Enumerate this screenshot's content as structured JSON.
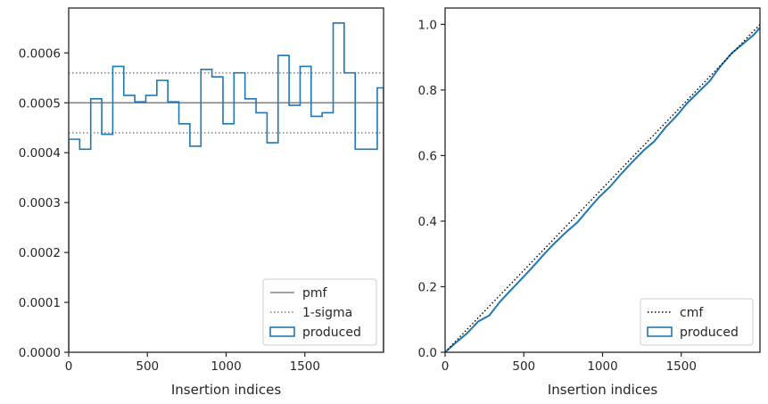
{
  "chart_data": [
    {
      "type": "histogram",
      "xlabel": "Insertion indices",
      "ylabel": "",
      "xlim": [
        0,
        2000
      ],
      "ylim": [
        0,
        0.00069
      ],
      "xticks": [
        0,
        500,
        1000,
        1500
      ],
      "xtick_labels": [
        "0",
        "500",
        "1000",
        "1500"
      ],
      "yticks": [
        0,
        0.0001,
        0.0002,
        0.0003,
        0.0004,
        0.0005,
        0.0006
      ],
      "ytick_labels": [
        "0.0000",
        "0.0001",
        "0.0002",
        "0.0003",
        "0.0004",
        "0.0005",
        "0.0006"
      ],
      "grid": false,
      "legend_position": "lower right",
      "bin_edges": [
        0,
        70,
        140,
        210,
        280,
        350,
        420,
        490,
        560,
        630,
        700,
        770,
        840,
        910,
        980,
        1050,
        1120,
        1190,
        1260,
        1330,
        1400,
        1470,
        1540,
        1610,
        1680,
        1750,
        1820,
        1890,
        1960,
        2000
      ],
      "series": [
        {
          "name": "pmf",
          "style": "solid",
          "color": "#808080",
          "value": 0.0005
        },
        {
          "name": "1-sigma",
          "style": "dotted",
          "color": "#808080",
          "values": [
            0.00044,
            0.00056
          ]
        },
        {
          "name": "produced",
          "style": "step",
          "color": "#1f77b4",
          "values": [
            0.000427,
            0.000407,
            0.000508,
            0.000437,
            0.000573,
            0.000515,
            0.000502,
            0.000515,
            0.000545,
            0.000502,
            0.000458,
            0.000413,
            0.000567,
            0.000552,
            0.000458,
            0.00056,
            0.000508,
            0.00048,
            0.00042,
            0.000595,
            0.000495,
            0.000573,
            0.000473,
            0.00048,
            0.00066,
            0.00056,
            0.000407,
            0.000407,
            0.00053
          ]
        }
      ]
    },
    {
      "type": "line",
      "xlabel": "Insertion indices",
      "ylabel": "",
      "xlim": [
        0,
        2000
      ],
      "ylim": [
        0,
        1.05
      ],
      "xticks": [
        0,
        500,
        1000,
        1500
      ],
      "xtick_labels": [
        "0",
        "500",
        "1000",
        "1500"
      ],
      "yticks": [
        0,
        0.2,
        0.4,
        0.6,
        0.8,
        1.0
      ],
      "ytick_labels": [
        "0.0",
        "0.2",
        "0.4",
        "0.6",
        "0.8",
        "1.0"
      ],
      "grid": false,
      "legend_position": "lower right",
      "series": [
        {
          "name": "cmf",
          "style": "dotted",
          "color": "#000000",
          "x": [
            0,
            2000
          ],
          "y": [
            0,
            1
          ]
        },
        {
          "name": "produced",
          "style": "step",
          "color": "#1f77b4",
          "x": [
            0,
            70,
            140,
            210,
            280,
            350,
            420,
            490,
            560,
            630,
            700,
            770,
            840,
            910,
            980,
            1050,
            1120,
            1190,
            1260,
            1330,
            1400,
            1470,
            1540,
            1610,
            1680,
            1750,
            1820,
            1890,
            1960,
            2000
          ],
          "y": [
            0,
            0.03,
            0.058,
            0.094,
            0.112,
            0.155,
            0.191,
            0.226,
            0.262,
            0.3,
            0.335,
            0.367,
            0.396,
            0.436,
            0.474,
            0.506,
            0.545,
            0.581,
            0.615,
            0.644,
            0.686,
            0.721,
            0.761,
            0.794,
            0.827,
            0.873,
            0.912,
            0.94,
            0.968,
            0.99
          ]
        }
      ]
    }
  ],
  "colors": {
    "produced": "#1f77b4",
    "reference": "#808080",
    "cmf": "#000000",
    "frame": "#262626"
  }
}
